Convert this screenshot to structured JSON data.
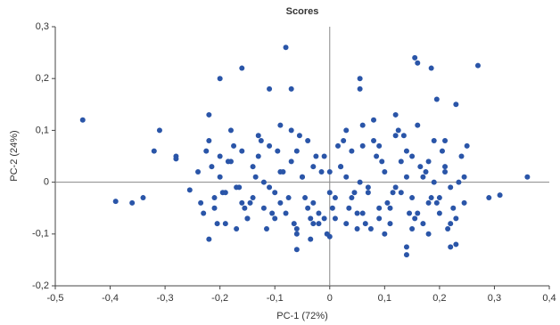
{
  "chart_data": {
    "type": "scatter",
    "title": "Scores",
    "x_label": "PC-1 (72%)",
    "y_label": "PC-2 (24%)",
    "color": "#2a55a8",
    "xlim": [
      -0.5,
      0.4
    ],
    "ylim": [
      -0.2,
      0.3
    ],
    "xticks": [
      {
        "value": -0.5,
        "label": "-0,5"
      },
      {
        "value": -0.4,
        "label": "-0,4"
      },
      {
        "value": -0.3,
        "label": "-0,3"
      },
      {
        "value": -0.2,
        "label": "-0,2"
      },
      {
        "value": -0.1,
        "label": "-0,1"
      },
      0,
      {
        "value": 0.1,
        "label": "0,1"
      },
      {
        "value": 0.2,
        "label": "0,2"
      },
      {
        "value": 0.3,
        "label": "0,3"
      },
      {
        "value": 0.4,
        "label": "0,4"
      }
    ],
    "yticks": [
      {
        "value": -0.2,
        "label": "-0,2"
      },
      {
        "value": -0.1,
        "label": "-0,1"
      },
      0,
      {
        "value": 0.1,
        "label": "0,1"
      },
      {
        "value": 0.2,
        "label": "0,2"
      },
      {
        "value": 0.3,
        "label": "0,3"
      }
    ],
    "x": [
      -0.45,
      -0.39,
      -0.36,
      -0.34,
      -0.31,
      -0.32,
      -0.28,
      -0.28,
      -0.255,
      -0.2,
      -0.16,
      -0.08,
      -0.11,
      -0.07,
      -0.22,
      0.155,
      0.16,
      0.185,
      0.27,
      0.055,
      0.055,
      0.36,
      0.31,
      0.29,
      0.245,
      0.23,
      0.22,
      -0.06,
      -0.22,
      0.14,
      0.14,
      0,
      -0.035,
      0.21,
      0.23,
      0.195,
      0.25,
      -0.24,
      -0.23,
      -0.22,
      -0.21,
      -0.2,
      -0.19,
      -0.18,
      -0.17,
      -0.16,
      -0.15,
      -0.14,
      -0.13,
      -0.12,
      -0.11,
      -0.1,
      -0.09,
      -0.08,
      -0.07,
      -0.06,
      -0.05,
      -0.04,
      -0.03,
      -0.02,
      -0.01,
      0.01,
      0.02,
      0.03,
      0.04,
      0.05,
      0.06,
      0.07,
      0.08,
      0.09,
      0.1,
      0.11,
      0.12,
      0.13,
      0.14,
      0.15,
      0.16,
      0.17,
      0.18,
      0.19,
      0.2,
      0.21,
      0.22,
      0.23,
      0.24,
      -0.235,
      -0.215,
      -0.195,
      -0.175,
      -0.155,
      -0.135,
      -0.115,
      -0.095,
      -0.075,
      -0.055,
      -0.035,
      -0.015,
      0.005,
      0.025,
      0.045,
      0.065,
      0.085,
      0.105,
      0.125,
      0.145,
      0.165,
      0.185,
      0.205,
      0.225,
      0.245,
      -0.225,
      -0.205,
      -0.185,
      -0.165,
      -0.145,
      -0.125,
      -0.105,
      -0.085,
      -0.065,
      -0.045,
      -0.025,
      -0.005,
      0.015,
      0.035,
      0.055,
      0.075,
      0.095,
      0.115,
      0.135,
      0.155,
      0.175,
      0.195,
      0.215,
      0.235,
      -0.21,
      -0.18,
      -0.15,
      -0.12,
      -0.09,
      -0.06,
      -0.03,
      0.0,
      0.03,
      0.06,
      0.09,
      0.12,
      0.15,
      0.18,
      0.21,
      -0.17,
      -0.13,
      -0.1,
      -0.07,
      -0.04,
      -0.01,
      0.02,
      0.05,
      0.08,
      0.11,
      0.14,
      0.17,
      0.2,
      -0.19,
      -0.14,
      -0.09,
      -0.05,
      -0.02,
      0.01,
      0.04,
      0.07,
      0.1,
      0.13,
      0.16,
      0.19,
      0.22,
      -0.2,
      -0.16,
      -0.11,
      -0.06,
      -0.03,
      0.0,
      0.03,
      0.06,
      0.09,
      0.12,
      0.15,
      0.18
    ],
    "y": [
      0.12,
      -0.037,
      -0.04,
      -0.03,
      0.1,
      0.06,
      0.05,
      0.045,
      -0.015,
      0.2,
      0.22,
      0.26,
      0.18,
      0.18,
      0.13,
      0.24,
      0.23,
      0.22,
      0.225,
      0.2,
      0.18,
      0.01,
      -0.025,
      -0.03,
      -0.04,
      -0.12,
      -0.125,
      -0.13,
      -0.11,
      -0.14,
      -0.125,
      -0.105,
      -0.11,
      0.08,
      0.15,
      0.16,
      0.07,
      0.02,
      -0.06,
      0.08,
      -0.03,
      0.05,
      -0.08,
      0.1,
      -0.01,
      0.06,
      -0.07,
      0.03,
      0.09,
      -0.05,
      0.07,
      -0.02,
      0.11,
      -0.06,
      0.04,
      -0.09,
      0.01,
      0.08,
      -0.04,
      -0.08,
      0.05,
      -0.07,
      0.03,
      0.1,
      -0.03,
      -0.06,
      0.07,
      -0.01,
      0.12,
      -0.05,
      0.02,
      -0.08,
      0.09,
      -0.02,
      0.06,
      -0.09,
      0.11,
      0.01,
      -0.04,
      0.08,
      -0.06,
      0.03,
      -0.01,
      -0.07,
      0.05,
      -0.04,
      0.03,
      -0.02,
      0.07,
      -0.05,
      0.01,
      -0.09,
      0.06,
      -0.03,
      0.09,
      -0.07,
      0.02,
      -0.05,
      0.08,
      -0.02,
      -0.08,
      0.05,
      -0.04,
      0.1,
      -0.06,
      0.03,
      -0.03,
      0.06,
      -0.05,
      0.01,
      0.06,
      -0.08,
      0.04,
      -0.01,
      -0.04,
      0.08,
      -0.06,
      0.02,
      -0.08,
      -0.03,
      0.05,
      -0.1,
      0.07,
      -0.05,
      0.0,
      -0.09,
      0.04,
      -0.02,
      0.09,
      -0.07,
      0.02,
      -0.04,
      -0.09,
      0.0,
      -0.05,
      0.04,
      -0.07,
      0.0,
      -0.04,
      0.06,
      -0.08,
      -0.02,
      0.01,
      -0.06,
      0.07,
      -0.01,
      -0.03,
      0.04,
      0.02,
      -0.09,
      0.05,
      -0.07,
      0.1,
      -0.05,
      -0.07,
      0.03,
      -0.09,
      0.08,
      -0.05,
      0.01,
      -0.08,
      -0.03,
      -0.02,
      -0.03,
      0.02,
      0.01,
      -0.06,
      -0.03,
      0.06,
      -0.02,
      -0.1,
      0.04,
      -0.06,
      0.0,
      -0.08,
      0.01,
      -0.04,
      -0.01,
      -0.1,
      0.03,
      0.02,
      -0.08,
      0.11,
      -0.07,
      0.13,
      0.05,
      -0.1
    ]
  }
}
